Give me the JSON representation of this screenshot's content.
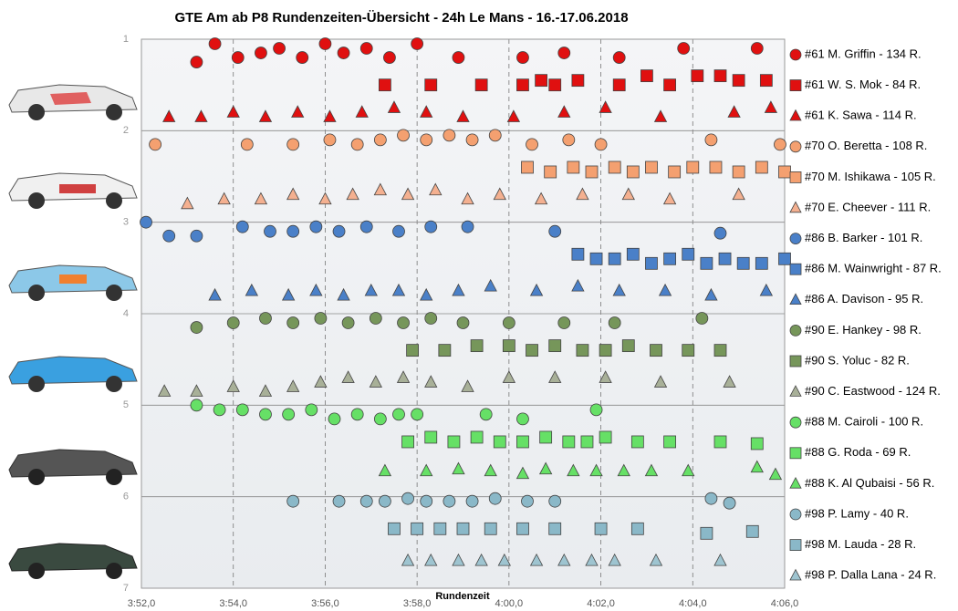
{
  "chart_data": {
    "type": "scatter",
    "title": "GTE Am ab P8 Rundenzeiten-Übersicht  - 24h Le Mans  - 16.-17.06.2018",
    "x_label": "Rundenzeit",
    "xlim": [
      232,
      246
    ],
    "xticks": [
      {
        "value": 232,
        "label": "3:52,0"
      },
      {
        "value": 234,
        "label": "3:54,0"
      },
      {
        "value": 236,
        "label": "3:56,0"
      },
      {
        "value": 238,
        "label": "3:58,0"
      },
      {
        "value": 240,
        "label": "4:00,0"
      },
      {
        "value": 242,
        "label": "4:02,0"
      },
      {
        "value": 244,
        "label": "4:04,0"
      },
      {
        "value": 246,
        "label": "4:06,0"
      }
    ],
    "ylim": [
      1,
      7
    ],
    "y_inverted": true,
    "yticks": [
      1,
      2,
      3,
      4,
      5,
      6,
      7
    ],
    "grid": true,
    "legend": "right",
    "series": [
      {
        "name": "#61 M. Griffin - 134 R.",
        "color": "#e01010",
        "marker": "circle",
        "x": [
          233.2,
          233.6,
          234.1,
          234.6,
          235.0,
          235.5,
          236.0,
          236.4,
          236.9,
          237.4,
          238.0,
          238.9,
          240.3,
          241.2,
          242.4,
          243.8,
          245.4
        ],
        "y": [
          1.25,
          1.05,
          1.2,
          1.15,
          1.1,
          1.2,
          1.05,
          1.15,
          1.1,
          1.2,
          1.05,
          1.2,
          1.2,
          1.15,
          1.2,
          1.1,
          1.1
        ]
      },
      {
        "name": "#61 W. S. Mok - 84 R.",
        "color": "#e01010",
        "marker": "square",
        "x": [
          237.3,
          238.3,
          239.4,
          240.3,
          240.7,
          241.0,
          241.5,
          242.4,
          243.0,
          243.5,
          244.1,
          244.6,
          245.0,
          245.6
        ],
        "y": [
          1.5,
          1.5,
          1.5,
          1.5,
          1.45,
          1.5,
          1.45,
          1.5,
          1.4,
          1.5,
          1.4,
          1.4,
          1.45,
          1.45
        ]
      },
      {
        "name": "#61 K. Sawa - 114 R.",
        "color": "#e01010",
        "marker": "triangle",
        "x": [
          232.6,
          233.3,
          234.0,
          234.7,
          235.4,
          236.1,
          236.8,
          237.5,
          238.2,
          239.0,
          240.1,
          241.2,
          242.1,
          243.3,
          244.9,
          245.7
        ],
        "y": [
          1.85,
          1.85,
          1.8,
          1.85,
          1.8,
          1.85,
          1.8,
          1.75,
          1.8,
          1.85,
          1.85,
          1.8,
          1.75,
          1.85,
          1.8,
          1.75
        ]
      },
      {
        "name": "#70 O. Beretta - 108 R.",
        "color": "#f4a070",
        "marker": "circle",
        "x": [
          232.3,
          234.3,
          235.3,
          236.1,
          236.7,
          237.2,
          237.7,
          238.2,
          238.7,
          239.2,
          239.7,
          240.5,
          241.3,
          242.0,
          244.4,
          245.9
        ],
        "y": [
          2.15,
          2.15,
          2.15,
          2.1,
          2.15,
          2.1,
          2.05,
          2.1,
          2.05,
          2.1,
          2.05,
          2.15,
          2.1,
          2.15,
          2.1,
          2.15
        ]
      },
      {
        "name": "#70 M. Ishikawa - 105 R.",
        "color": "#f4a070",
        "marker": "square",
        "x": [
          240.4,
          240.9,
          241.4,
          241.8,
          242.3,
          242.7,
          243.1,
          243.6,
          244.0,
          244.5,
          245.0,
          245.5,
          246.0
        ],
        "y": [
          2.4,
          2.45,
          2.4,
          2.45,
          2.4,
          2.45,
          2.4,
          2.45,
          2.4,
          2.4,
          2.45,
          2.4,
          2.45
        ]
      },
      {
        "name": "#70 E. Cheever - 111 R.",
        "color": "#f4b090",
        "marker": "triangle",
        "x": [
          233.0,
          233.8,
          234.6,
          235.3,
          236.0,
          236.6,
          237.2,
          237.8,
          238.4,
          239.1,
          239.8,
          240.7,
          241.6,
          242.6,
          243.5,
          245.0
        ],
        "y": [
          2.8,
          2.75,
          2.75,
          2.7,
          2.75,
          2.7,
          2.65,
          2.7,
          2.65,
          2.75,
          2.7,
          2.75,
          2.7,
          2.7,
          2.75,
          2.7
        ]
      },
      {
        "name": "#86 B. Barker - 101 R.",
        "color": "#4a80c8",
        "marker": "circle",
        "x": [
          232.1,
          232.6,
          233.2,
          234.2,
          234.8,
          235.3,
          235.8,
          236.3,
          236.9,
          237.6,
          238.3,
          239.1,
          241.0,
          244.6
        ],
        "y": [
          3.0,
          3.15,
          3.15,
          3.05,
          3.1,
          3.1,
          3.05,
          3.1,
          3.05,
          3.1,
          3.05,
          3.05,
          3.1,
          3.12
        ]
      },
      {
        "name": "#86 M. Wainwright - 87 R.",
        "color": "#4a80c8",
        "marker": "square",
        "x": [
          241.5,
          241.9,
          242.3,
          242.7,
          243.1,
          243.5,
          243.9,
          244.3,
          244.7,
          245.1,
          245.5,
          246.0
        ],
        "y": [
          3.35,
          3.4,
          3.4,
          3.35,
          3.45,
          3.4,
          3.35,
          3.45,
          3.4,
          3.45,
          3.45,
          3.4
        ]
      },
      {
        "name": "#86 A. Davison - 95 R.",
        "color": "#4a80c8",
        "marker": "triangle",
        "x": [
          233.6,
          234.4,
          235.2,
          235.8,
          236.4,
          237.0,
          237.6,
          238.2,
          238.9,
          239.6,
          240.6,
          241.5,
          242.4,
          243.4,
          244.4,
          245.6
        ],
        "y": [
          3.8,
          3.75,
          3.8,
          3.75,
          3.8,
          3.75,
          3.75,
          3.8,
          3.75,
          3.7,
          3.75,
          3.7,
          3.75,
          3.75,
          3.8,
          3.75
        ]
      },
      {
        "name": "#90 E. Hankey - 98 R.",
        "color": "#76965a",
        "marker": "circle",
        "x": [
          233.2,
          234.0,
          234.7,
          235.3,
          235.9,
          236.5,
          237.1,
          237.7,
          238.3,
          239.0,
          240.0,
          241.2,
          242.3,
          244.2
        ],
        "y": [
          4.15,
          4.1,
          4.05,
          4.1,
          4.05,
          4.1,
          4.05,
          4.1,
          4.05,
          4.1,
          4.1,
          4.1,
          4.1,
          4.05
        ]
      },
      {
        "name": "#90 S. Yoluc - 82 R.",
        "color": "#76965a",
        "marker": "square",
        "x": [
          237.9,
          238.6,
          239.3,
          240.0,
          240.5,
          241.0,
          241.6,
          242.1,
          242.6,
          243.2,
          243.9,
          244.6
        ],
        "y": [
          4.4,
          4.4,
          4.35,
          4.35,
          4.4,
          4.35,
          4.4,
          4.4,
          4.35,
          4.4,
          4.4,
          4.4
        ]
      },
      {
        "name": "#90 C. Eastwood - 124 R.",
        "color": "#a8b098",
        "marker": "triangle",
        "x": [
          232.5,
          233.2,
          234.0,
          234.7,
          235.3,
          235.9,
          236.5,
          237.1,
          237.7,
          238.3,
          239.1,
          240.0,
          241.0,
          242.1,
          243.3,
          244.8
        ],
        "y": [
          4.85,
          4.85,
          4.8,
          4.85,
          4.8,
          4.75,
          4.7,
          4.75,
          4.7,
          4.75,
          4.8,
          4.7,
          4.7,
          4.7,
          4.75,
          4.75
        ]
      },
      {
        "name": "#88 M. Cairoli - 100 R.",
        "color": "#66e066",
        "marker": "circle",
        "x": [
          233.2,
          233.7,
          234.2,
          234.7,
          235.2,
          235.7,
          236.2,
          236.7,
          237.2,
          237.6,
          238.0,
          239.5,
          240.3,
          241.9
        ],
        "y": [
          5.0,
          5.05,
          5.05,
          5.1,
          5.1,
          5.05,
          5.15,
          5.1,
          5.15,
          5.1,
          5.1,
          5.1,
          5.15,
          5.05
        ]
      },
      {
        "name": "#88 G. Roda - 69 R.",
        "color": "#66e066",
        "marker": "square",
        "x": [
          237.8,
          238.3,
          238.8,
          239.3,
          239.8,
          240.3,
          240.8,
          241.3,
          241.7,
          242.1,
          242.8,
          243.5,
          244.6,
          245.4
        ],
        "y": [
          5.4,
          5.35,
          5.4,
          5.35,
          5.4,
          5.4,
          5.35,
          5.4,
          5.4,
          5.35,
          5.4,
          5.4,
          5.4,
          5.42
        ]
      },
      {
        "name": "#88 K. Al Qubaisi - 56 R.",
        "color": "#66e066",
        "marker": "triangle",
        "x": [
          237.3,
          238.2,
          238.9,
          239.6,
          240.3,
          240.8,
          241.4,
          241.9,
          242.5,
          243.1,
          243.9,
          245.4,
          245.8
        ],
        "y": [
          5.72,
          5.72,
          5.7,
          5.72,
          5.75,
          5.7,
          5.72,
          5.72,
          5.72,
          5.72,
          5.72,
          5.68,
          5.76
        ]
      },
      {
        "name": "#98 P. Lamy - 40 R.",
        "color": "#8ab8c8",
        "marker": "circle",
        "x": [
          235.3,
          236.3,
          236.9,
          237.3,
          237.8,
          238.2,
          238.7,
          239.2,
          239.7,
          240.4,
          241.0,
          244.4,
          244.8
        ],
        "y": [
          6.05,
          6.05,
          6.05,
          6.05,
          6.02,
          6.05,
          6.05,
          6.05,
          6.02,
          6.05,
          6.05,
          6.02,
          6.07
        ]
      },
      {
        "name": "#98 M. Lauda - 28 R.",
        "color": "#8ab8c8",
        "marker": "square",
        "x": [
          237.5,
          238.0,
          238.5,
          239.0,
          239.6,
          240.3,
          241.0,
          242.0,
          242.8,
          244.3,
          245.3
        ],
        "y": [
          6.35,
          6.35,
          6.35,
          6.35,
          6.35,
          6.35,
          6.35,
          6.35,
          6.35,
          6.4,
          6.38
        ]
      },
      {
        "name": "#98 P. Dalla Lana - 24 R.",
        "color": "#9ec4d0",
        "marker": "triangle",
        "x": [
          237.8,
          238.3,
          238.9,
          239.4,
          239.9,
          240.6,
          241.2,
          241.8,
          242.3,
          243.2,
          244.6
        ],
        "y": [
          6.7,
          6.7,
          6.7,
          6.7,
          6.7,
          6.7,
          6.7,
          6.7,
          6.7,
          6.7,
          6.7
        ]
      }
    ]
  }
}
